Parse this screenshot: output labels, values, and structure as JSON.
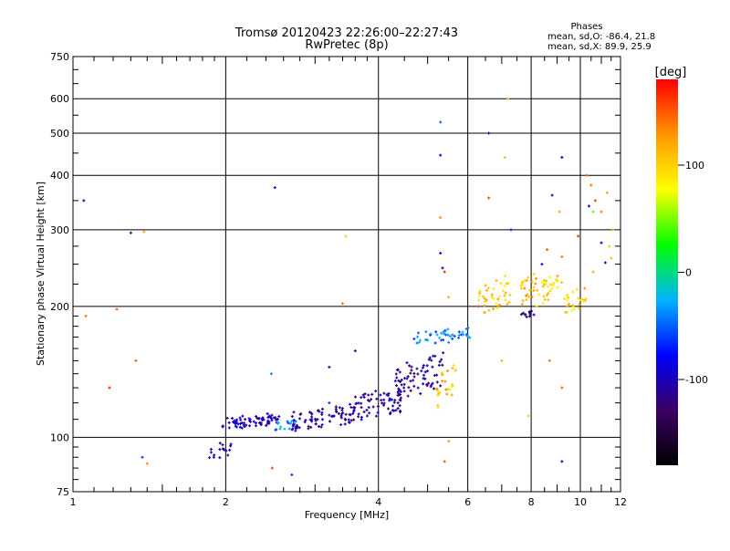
{
  "chart_data": {
    "type": "scatter",
    "title": "Tromsø 20120423 22:26:00–22:27:43",
    "subtitle": "RwPretec (8p)",
    "xlabel": "Frequency [MHz]",
    "ylabel": "Stationary phase Virtual Height [km]",
    "x_scale": "log",
    "y_scale": "log",
    "xlim": [
      1,
      12
    ],
    "ylim": [
      75,
      750
    ],
    "x_ticks": [
      1,
      2,
      4,
      6,
      8,
      10,
      12
    ],
    "y_ticks": [
      75,
      100,
      200,
      300,
      400,
      500,
      600,
      750
    ],
    "grid": true,
    "phases_box": {
      "title": "Phases",
      "line1": "mean, sd,O: -86.4, 21.8",
      "line2": "mean, sd,X:  89.9, 25.9"
    },
    "colorbar": {
      "label": "[deg]",
      "range": [
        -180,
        180
      ],
      "ticks": [
        100,
        0,
        -100
      ],
      "colormap": [
        "#000000",
        "#3c0064",
        "#0000ff",
        "#00b4ff",
        "#00ff00",
        "#ffff00",
        "#ff9600",
        "#ff0000"
      ]
    },
    "series": [
      {
        "points": [
          [
            1.05,
            350,
            -80
          ],
          [
            1.06,
            190,
            140
          ],
          [
            1.22,
            197,
            150
          ],
          [
            1.18,
            130,
            170
          ],
          [
            1.3,
            295,
            -120
          ],
          [
            1.38,
            297,
            120
          ],
          [
            1.33,
            150,
            150
          ],
          [
            1.37,
            90,
            -60
          ],
          [
            1.4,
            87,
            130
          ],
          [
            1.95,
            97,
            -120
          ],
          [
            1.98,
            94,
            -80
          ],
          [
            2.02,
            91,
            -110
          ],
          [
            2.5,
            375,
            -90
          ],
          [
            2.47,
            85,
            160
          ],
          [
            2.7,
            82,
            -60
          ],
          [
            2.8,
            75,
            -50
          ],
          [
            2.46,
            140,
            -40
          ],
          [
            3.2,
            120,
            -60
          ],
          [
            3.3,
            118,
            110
          ],
          [
            3.2,
            145,
            -120
          ],
          [
            3.45,
            290,
            100
          ],
          [
            3.4,
            203,
            140
          ],
          [
            3.6,
            158,
            -100
          ],
          [
            5.3,
            530,
            -50
          ],
          [
            5.3,
            445,
            -80
          ],
          [
            5.3,
            320,
            130
          ],
          [
            5.3,
            265,
            -80
          ],
          [
            5.35,
            245,
            -100
          ],
          [
            5.5,
            210,
            120
          ],
          [
            5.4,
            240,
            170
          ],
          [
            5.4,
            88,
            150
          ],
          [
            5.5,
            98,
            120
          ],
          [
            6.6,
            500,
            -110
          ],
          [
            6.6,
            355,
            160
          ],
          [
            7.2,
            600,
            110
          ],
          [
            7.1,
            440,
            110
          ],
          [
            7.3,
            300,
            -70
          ],
          [
            8.4,
            250,
            -80
          ],
          [
            8.6,
            270,
            150
          ],
          [
            8.8,
            360,
            -90
          ],
          [
            9.2,
            440,
            -100
          ],
          [
            9.1,
            330,
            120
          ],
          [
            9.2,
            260,
            140
          ],
          [
            9.2,
            130,
            150
          ],
          [
            9.2,
            88,
            -100
          ],
          [
            8.7,
            150,
            140
          ],
          [
            7.9,
            112,
            100
          ],
          [
            7.0,
            150,
            110
          ],
          [
            6.3,
            200,
            160
          ],
          [
            9.9,
            290,
            160
          ],
          [
            10.3,
            400,
            150
          ],
          [
            10.5,
            380,
            140
          ],
          [
            10.4,
            340,
            -110
          ],
          [
            10.7,
            350,
            160
          ],
          [
            11.0,
            330,
            140
          ],
          [
            11.3,
            365,
            120
          ],
          [
            10.6,
            330,
            40
          ],
          [
            10.2,
            220,
            130
          ],
          [
            10.6,
            240,
            120
          ],
          [
            11.0,
            280,
            -90
          ],
          [
            11.4,
            275,
            60
          ],
          [
            11.5,
            258,
            110
          ],
          [
            11.2,
            252,
            -120
          ],
          [
            11.6,
            300,
            120
          ]
        ]
      }
    ],
    "clusters": [
      {
        "x_range": [
          1.97,
          2.55
        ],
        "y_range": [
          104,
          114
        ],
        "phase": -100,
        "n": 70
      },
      {
        "x_range": [
          2.45,
          2.75
        ],
        "y_range": [
          103,
          110
        ],
        "phase": -40,
        "n": 18
      },
      {
        "x_range": [
          1.85,
          2.05
        ],
        "y_range": [
          88,
          98
        ],
        "phase": -100,
        "n": 14
      },
      {
        "x_range": [
          2.7,
          3.6
        ],
        "y_range": [
          103,
          120
        ],
        "phase": -110,
        "n": 75
      },
      {
        "x_range": [
          3.5,
          4.5
        ],
        "y_range": [
          108,
          132
        ],
        "phase": -110,
        "n": 70
      },
      {
        "x_range": [
          4.3,
          5.4
        ],
        "y_range": [
          120,
          158
        ],
        "phase": -115,
        "n": 70
      },
      {
        "x_range": [
          4.7,
          6.1
        ],
        "y_range": [
          162,
          180
        ],
        "phase": -40,
        "n": 45
      },
      {
        "x_range": [
          5.2,
          5.7
        ],
        "y_range": [
          115,
          150
        ],
        "phase": 110,
        "n": 25
      },
      {
        "x_range": [
          6.3,
          7.3
        ],
        "y_range": [
          190,
          240
        ],
        "phase": 105,
        "n": 40
      },
      {
        "x_range": [
          7.6,
          8.2
        ],
        "y_range": [
          200,
          240
        ],
        "phase": 110,
        "n": 25
      },
      {
        "x_range": [
          7.6,
          8.1
        ],
        "y_range": [
          188,
          196
        ],
        "phase": -120,
        "n": 12
      },
      {
        "x_range": [
          8.2,
          9.2
        ],
        "y_range": [
          200,
          240
        ],
        "phase": 95,
        "n": 30
      },
      {
        "x_range": [
          9.3,
          10.3
        ],
        "y_range": [
          190,
          225
        ],
        "phase": 100,
        "n": 25
      }
    ]
  }
}
